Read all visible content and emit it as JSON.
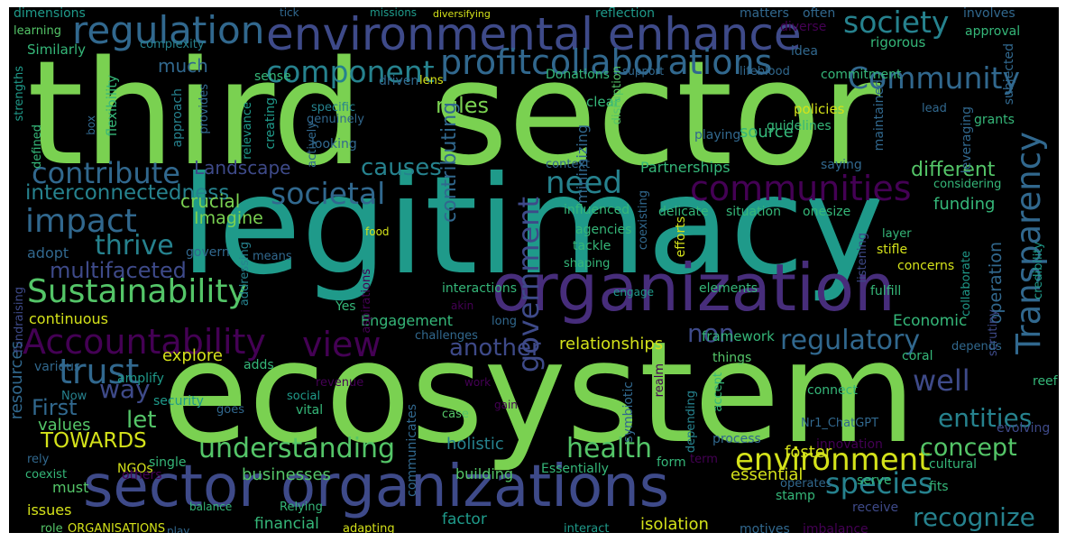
{
  "palette": {
    "lime": "#7ad151",
    "green": "#54c568",
    "teal": "#1f9a8a",
    "cyan": "#26828e",
    "blue": "#31688e",
    "indigo": "#3e4a89",
    "purple": "#472d7b",
    "violet": "#440154",
    "yellow": "#d4e21a",
    "mint": "#35b779"
  },
  "words": [
    "third",
    "sector",
    "legitimacy",
    "ecosystem",
    "organization",
    "sector organizations",
    "environmental enhance",
    "regulation",
    "profitcollaborations",
    "component",
    "Community",
    "society",
    "Transparency",
    "contribute",
    "impact",
    "Sustainability",
    "Accountability",
    "view",
    "communities",
    "societal",
    "thrive",
    "multifaceted",
    "interconnectedness",
    "trust",
    "need",
    "causes",
    "government",
    "regulatory",
    "well",
    "species",
    "environment",
    "understanding",
    "health",
    "entities",
    "concept",
    "recognize",
    "TOWARDS",
    "First",
    "let",
    "way",
    "another",
    "non",
    "different",
    "rules",
    "much",
    "Landscape",
    "crucial",
    "Imagine",
    "adopt",
    "continuous",
    "values",
    "resources",
    "issues",
    "must",
    "businesses",
    "building",
    "holistic",
    "financial",
    "factor",
    "isolation",
    "foster",
    "essential",
    "relationships",
    "Partnerships",
    "operation",
    "Economic",
    "Engagement",
    "source",
    "funding",
    "minimizing",
    "contributing",
    "policies",
    "guidelines",
    "dimensions",
    "learning",
    "Similarly",
    "complexity",
    "tick",
    "missions",
    "diversifying",
    "reflection",
    "matters",
    "often",
    "involves",
    "approval",
    "rigorous",
    "subjected",
    "commitment",
    "lifeblood",
    "support",
    "Donations",
    "lens",
    "clear",
    "disruption",
    "saying",
    "considering",
    "credibility",
    "leveraging",
    "lead",
    "grants",
    "maintained",
    "playing",
    "genuinely",
    "specific",
    "actively",
    "creating",
    "relevance",
    "provides",
    "approach",
    "flexibility",
    "strengths",
    "defined",
    "box",
    "sense",
    "driven",
    "idea",
    "diverse",
    "looking",
    "context",
    "coexisting",
    "influenced",
    "delicate",
    "situation",
    "onesize",
    "food",
    "agencies",
    "tackle",
    "shaping",
    "efforts",
    "layer",
    "stifle",
    "concerns",
    "listening",
    "collaborate",
    "scrutiny",
    "fulfill",
    "interactions",
    "engage",
    "elements",
    "means",
    "addressing",
    "aspirations",
    "govern",
    "Yes",
    "akin",
    "long",
    "challenges",
    "framework",
    "things",
    "depends",
    "explore",
    "adds",
    "amplify",
    "various",
    "security",
    "Now",
    "fundraising",
    "coexist",
    "NGOs",
    "rely",
    "single",
    "others",
    "role",
    "ORGANISATIONS",
    "play",
    "balance",
    "Relying",
    "adapting",
    "interact",
    "motives",
    "imbalance",
    "stamp",
    "serve",
    "receive",
    "operates",
    "fits",
    "evolving",
    "cultural",
    "innovation",
    "process",
    "term",
    "form",
    "depending",
    "accept",
    "realm",
    "symbiotic",
    "communicates",
    "case",
    "gain",
    "work",
    "revenue",
    "vital",
    "goes",
    "social",
    "connect",
    "coral",
    "reef",
    "Nr1_ChatGPT",
    "Essentially"
  ]
}
